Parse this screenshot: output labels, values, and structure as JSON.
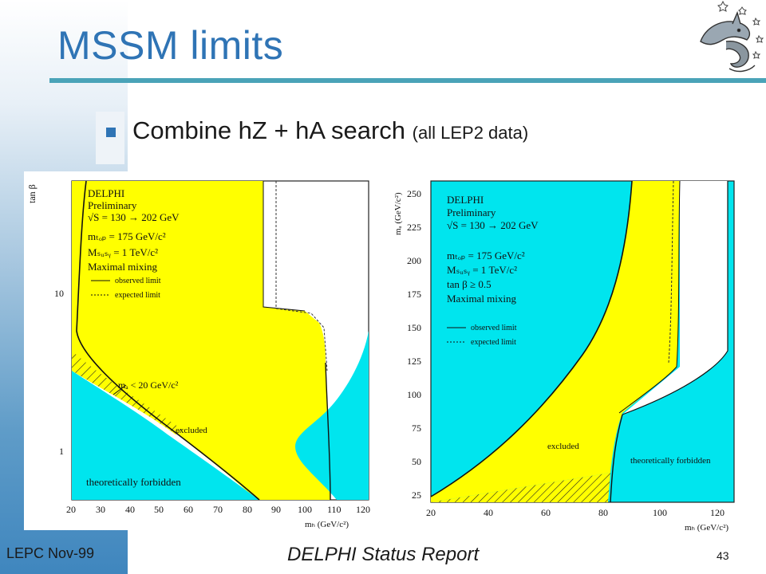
{
  "slide": {
    "title": "MSSM limits",
    "bullet_main": "Combine hZ + hA search",
    "bullet_note": "(all LEP2 data)"
  },
  "footer": {
    "left": "LEPC Nov-99",
    "center": "DELPHI Status Report",
    "page": "43"
  },
  "logo": {
    "icon": "dolphin-logo-icon"
  },
  "colors": {
    "title": "#2f74b5",
    "rule": "#4aa3b8",
    "excluded": "#ffff00",
    "forbidden": "#00e5ee"
  },
  "left_plot": {
    "ylabel": "tan β",
    "yticks": [
      "10",
      "1"
    ],
    "xticks": [
      "20",
      "30",
      "40",
      "50",
      "60",
      "70",
      "80",
      "90",
      "100",
      "110",
      "120"
    ],
    "xlabel": "mₕ (GeV/c²)",
    "legend": {
      "experiment": "DELPHI",
      "status": "Preliminary",
      "energy": "√S = 130 → 202 GeV",
      "mtop": "mₜₒₚ = 175 GeV/c²",
      "msusy": "Mₛᵤₛᵧ = 1 TeV/c²",
      "mixing": "Maximal mixing",
      "observed": "observed limit",
      "expected": "expected limit"
    },
    "annotations": {
      "ma": "mₐ < 20 GeV/c²",
      "excluded": "excluded",
      "forbidden": "theoretically forbidden"
    }
  },
  "right_plot": {
    "ylabel": "mₐ (GeV/c²)",
    "yticks": [
      "250",
      "225",
      "200",
      "175",
      "150",
      "125",
      "100",
      "75",
      "50",
      "25"
    ],
    "xticks": [
      "20",
      "40",
      "60",
      "80",
      "100",
      "120"
    ],
    "xlabel": "mₕ (GeV/c²)",
    "legend": {
      "experiment": "DELPHI",
      "status": "Preliminary",
      "energy": "√S = 130 → 202 GeV",
      "mtop": "mₜₒₚ = 175 GeV/c²",
      "msusy": "Mₛᵤₛᵧ = 1 TeV/c²",
      "tanb": "tan β ≥ 0.5",
      "mixing": "Maximal mixing",
      "observed": "observed limit",
      "expected": "expected limit"
    },
    "annotations": {
      "excluded": "excluded",
      "forbidden": "theoretically forbidden"
    }
  }
}
